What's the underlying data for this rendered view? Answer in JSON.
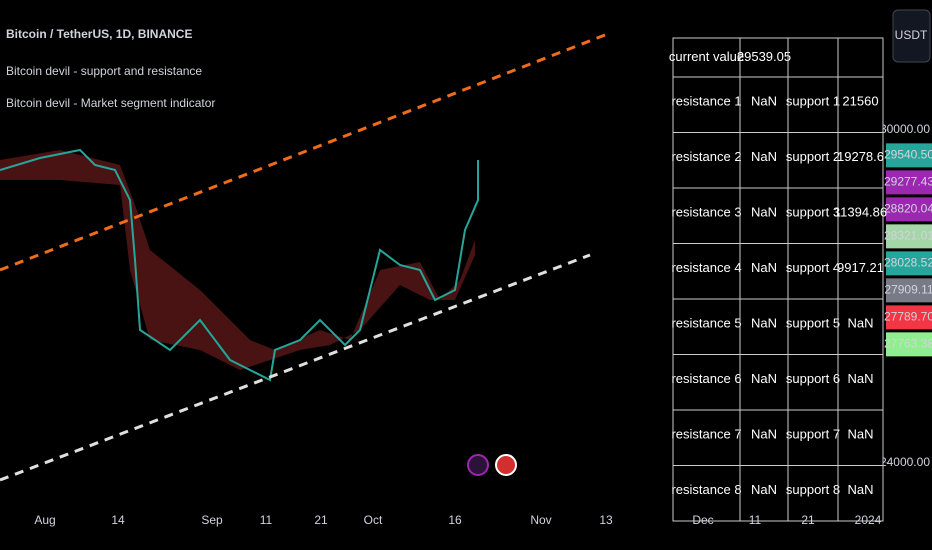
{
  "header": {
    "title": "Bitcoin / TetherUS, 1D, BINANCE",
    "indicators": [
      "Bitcoin devil - support and resistance",
      "Bitcoin devil - Market segment indicator"
    ]
  },
  "currency": "USDT",
  "table": {
    "rows": [
      [
        "current value",
        "29539.05"
      ],
      [
        "resistance 1",
        "NaN",
        "support 1",
        21560
      ],
      [
        "resistance 2",
        "NaN",
        "support 2",
        19278.6
      ],
      [
        "resistance 3",
        "NaN",
        "support 3",
        11394.86
      ],
      [
        "resistance 4",
        "NaN",
        "support 4",
        9917.21
      ],
      [
        "resistance 5",
        "NaN",
        "support 5",
        "NaN"
      ],
      [
        "resistance 6",
        "NaN",
        "support 6",
        "NaN"
      ],
      [
        "resistance 7",
        "NaN",
        "support 7",
        "NaN"
      ],
      [
        "resistance 8",
        "NaN",
        "support 8",
        "NaN"
      ]
    ]
  },
  "price_axis": {
    "ylim": [
      23240,
      32340
    ],
    "ticks": [
      {
        "value": 30000,
        "label": "30000.00"
      },
      {
        "value": 24000,
        "label": "24000.00"
      }
    ],
    "tags": [
      {
        "value": 29540.5,
        "label": "29540.50",
        "color": "#26a69a"
      },
      {
        "value": 29277.43,
        "label": "29277.43",
        "color": "#9c27b0"
      },
      {
        "value": 28820.04,
        "label": "28820.04",
        "color": "#9c27b0"
      },
      {
        "value": 28321.01,
        "label": "28321.01",
        "color": "#a5d6a7"
      },
      {
        "value": 28028.52,
        "label": "28028.52",
        "color": "#26a69a"
      },
      {
        "value": 27909.11,
        "label": "27909.11",
        "color": "#787b86"
      },
      {
        "value": 27789.7,
        "label": "27789.70",
        "color": "#f23645"
      },
      {
        "value": 27763.38,
        "label": "27763.38",
        "color": "#90ee90"
      }
    ]
  },
  "time_axis": {
    "labels": [
      "Aug",
      "14",
      "Sep",
      "11",
      "21",
      "Oct",
      "16",
      "Nov",
      "13",
      "Dec",
      "11",
      "21",
      "2024"
    ]
  }
}
